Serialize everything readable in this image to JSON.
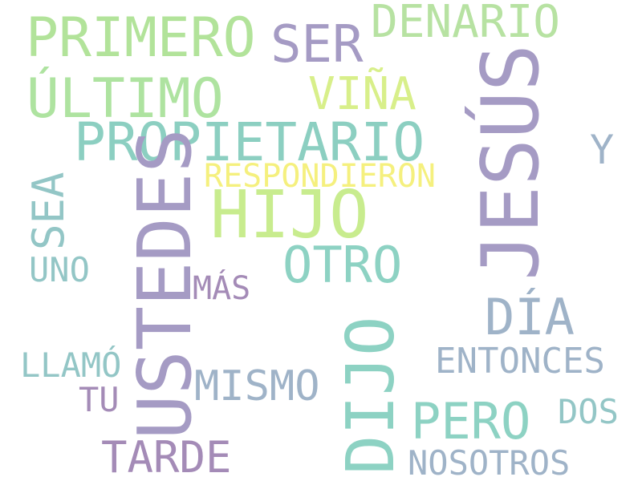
{
  "words": [
    {
      "id": "primero",
      "text": "PRIMERO",
      "color": "#b2e39a"
    },
    {
      "id": "ser",
      "text": "SER",
      "color": "#a59bc4"
    },
    {
      "id": "denario",
      "text": "DENARIO",
      "color": "#b7e2a2"
    },
    {
      "id": "ultimo",
      "text": "ÚLTIMO",
      "color": "#aee3a0"
    },
    {
      "id": "vina",
      "text": "VIÑA",
      "color": "#d8ef8a"
    },
    {
      "id": "jesus",
      "text": "JESÚS",
      "color": "#a59bc4"
    },
    {
      "id": "propietario",
      "text": "PROPIETARIO",
      "color": "#8ccfc1"
    },
    {
      "id": "y",
      "text": "Y",
      "color": "#9fb3c8"
    },
    {
      "id": "respondieron",
      "text": "RESPONDIERON",
      "color": "#f5f07e"
    },
    {
      "id": "hijo",
      "text": "HIJO",
      "color": "#c8ec8e"
    },
    {
      "id": "sea",
      "text": "SEA",
      "color": "#93c6c6"
    },
    {
      "id": "ustedes",
      "text": "USTEDES",
      "color": "#a59bc4"
    },
    {
      "id": "uno",
      "text": "UNO",
      "color": "#93c6c6"
    },
    {
      "id": "otro",
      "text": "OTRO",
      "color": "#8dd2c3"
    },
    {
      "id": "mas",
      "text": "MÁS",
      "color": "#a48bb7"
    },
    {
      "id": "dia",
      "text": "DÍA",
      "color": "#9fb3c8"
    },
    {
      "id": "dijo",
      "text": "DIJO",
      "color": "#8dd2c3"
    },
    {
      "id": "entonces",
      "text": "ENTONCES",
      "color": "#9fb3c8"
    },
    {
      "id": "llamo",
      "text": "LLAMÓ",
      "color": "#93c6c6"
    },
    {
      "id": "mismo",
      "text": "MISMO",
      "color": "#9fb3c8"
    },
    {
      "id": "tu",
      "text": "TU",
      "color": "#a48bb7"
    },
    {
      "id": "pero",
      "text": "PERO",
      "color": "#8dd2c3"
    },
    {
      "id": "dos",
      "text": "DOS",
      "color": "#93c6c6"
    },
    {
      "id": "tarde",
      "text": "TARDE",
      "color": "#a48bb7"
    },
    {
      "id": "nosotros",
      "text": "NOSOTROS",
      "color": "#9fb3c8"
    }
  ]
}
